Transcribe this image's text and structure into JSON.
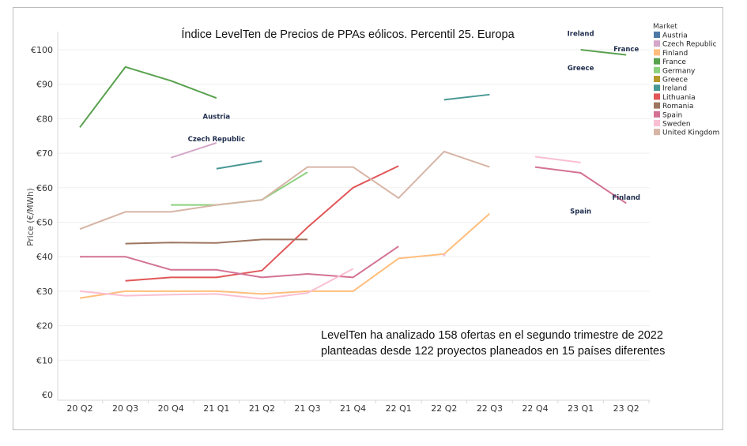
{
  "chart_data": {
    "type": "line",
    "title": "Índice LevelTen de Precios de PPAs eólicos. Percentil 25. Europa",
    "xlabel": "",
    "ylabel": "Price (€/MWh)",
    "ylim": [
      0,
      100
    ],
    "yticks": [
      0,
      10,
      20,
      30,
      40,
      50,
      60,
      70,
      80,
      90,
      100
    ],
    "ytick_labels": [
      "€0",
      "€10",
      "€20",
      "€30",
      "€40",
      "€50",
      "€60",
      "€70",
      "€80",
      "€90",
      "€100"
    ],
    "grid": true,
    "legend_title": "Market",
    "legend_position": "top-right",
    "categories": [
      "20 Q2",
      "20 Q3",
      "20 Q4",
      "21 Q1",
      "21 Q2",
      "21 Q3",
      "21 Q4",
      "22 Q1",
      "22 Q2",
      "22 Q3",
      "22 Q4",
      "23 Q1",
      "23 Q2"
    ],
    "series": [
      {
        "name": "Austria",
        "color": "#4e79a7",
        "values": [
          null,
          null,
          null,
          null,
          null,
          null,
          null,
          null,
          null,
          null,
          null,
          null,
          null
        ]
      },
      {
        "name": "Czech Republic",
        "color": "#d4a6c8",
        "values": [
          null,
          null,
          68.7,
          73.0,
          null,
          null,
          null,
          null,
          null,
          null,
          null,
          null,
          null
        ]
      },
      {
        "name": "Finland",
        "color": "#ffbe7d",
        "values": [
          28.0,
          30.0,
          30.0,
          30.0,
          29.2,
          30.0,
          30.0,
          39.5,
          40.8,
          52.5,
          null,
          null,
          null
        ]
      },
      {
        "name": "France",
        "color": "#59a14f",
        "values": [
          77.5,
          95.0,
          91.0,
          86.0,
          null,
          null,
          null,
          null,
          null,
          null,
          null,
          100.0,
          98.5
        ]
      },
      {
        "name": "Germany",
        "color": "#8cd17d",
        "values": [
          null,
          null,
          55.0,
          55.0,
          56.5,
          64.5,
          null,
          null,
          null,
          null,
          null,
          null,
          null
        ]
      },
      {
        "name": "Greece",
        "color": "#b6992d",
        "values": [
          null,
          null,
          null,
          null,
          null,
          null,
          null,
          null,
          null,
          null,
          null,
          null,
          null
        ]
      },
      {
        "name": "Ireland",
        "color": "#499894",
        "values": [
          null,
          null,
          null,
          65.5,
          67.7,
          null,
          null,
          null,
          85.5,
          87.0,
          null,
          null,
          null
        ]
      },
      {
        "name": "Lithuania",
        "color": "#e15759",
        "values": [
          null,
          33.0,
          34.0,
          34.0,
          36.0,
          48.5,
          60.0,
          66.3,
          null,
          null,
          null,
          null,
          null
        ]
      },
      {
        "name": "Romania",
        "color": "#9d7660",
        "values": [
          null,
          43.8,
          44.1,
          44.0,
          45.0,
          45.0,
          null,
          null,
          null,
          null,
          null,
          null,
          null
        ]
      },
      {
        "name": "Spain",
        "color": "#d37295",
        "values": [
          40.0,
          40.0,
          36.2,
          36.2,
          34.0,
          35.0,
          34.0,
          43.0,
          null,
          null,
          66.0,
          64.3,
          55.5
        ]
      },
      {
        "name": "Sweden",
        "color": "#fabfd2",
        "values": [
          30.0,
          28.7,
          29.0,
          29.2,
          27.8,
          29.5,
          36.5,
          null,
          40.5,
          null,
          69.0,
          67.3,
          null
        ]
      },
      {
        "name": "United Kingdom",
        "color": "#d7b5a6",
        "values": [
          48.0,
          53.0,
          53.0,
          55.0,
          56.5,
          66.0,
          66.0,
          57.0,
          70.5,
          66.0,
          null,
          null,
          null
        ]
      }
    ],
    "annotations": [
      {
        "text": "Austria",
        "x": "21 Q1",
        "y": 80
      },
      {
        "text": "Czech Republic",
        "x": "21 Q1",
        "y": 73.5
      },
      {
        "text": "Ireland",
        "x": "23 Q1",
        "y": 104
      },
      {
        "text": "France",
        "x": "23 Q2",
        "y": 99.5
      },
      {
        "text": "Greece",
        "x": "23 Q1",
        "y": 94
      },
      {
        "text": "Finland",
        "x": "23 Q2",
        "y": 56.5
      },
      {
        "text": "Spain",
        "x": "23 Q1",
        "y": 52.5
      }
    ],
    "note_lines": [
      "LevelTen ha analizado 158 ofertas en el segundo trimestre de 2022",
      "planteadas desde 122 proyectos planeados en 15 países diferentes"
    ]
  }
}
